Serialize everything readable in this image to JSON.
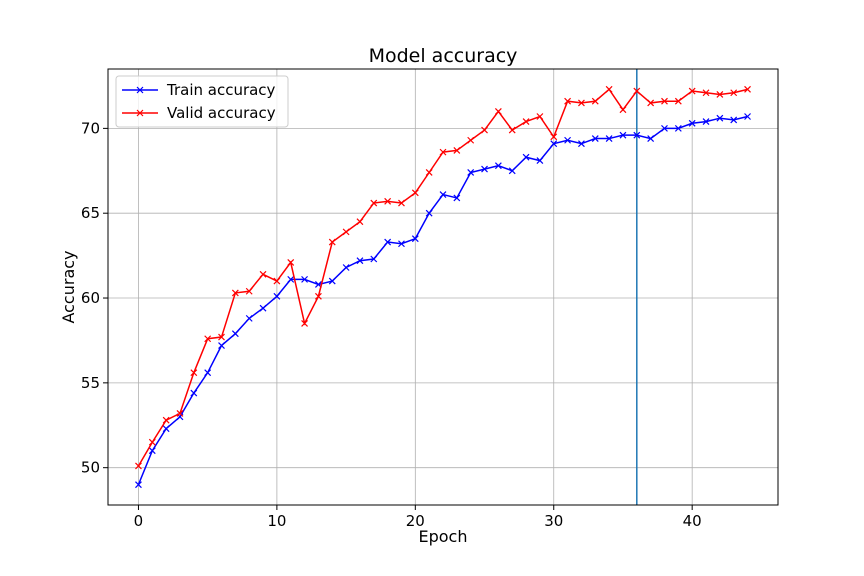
{
  "chart_data": {
    "type": "line",
    "title": "Model accuracy",
    "xlabel": "Epoch",
    "ylabel": "Accuracy",
    "xlim": [
      -2.2,
      46.2
    ],
    "ylim": [
      47.8,
      73.5
    ],
    "xticks": [
      0,
      10,
      20,
      30,
      40
    ],
    "yticks": [
      50,
      55,
      60,
      65,
      70
    ],
    "grid": true,
    "legend_position": "upper-left",
    "vertical_line": {
      "x": 36,
      "color": "#1f77b4"
    },
    "x": [
      0,
      1,
      2,
      3,
      4,
      5,
      6,
      7,
      8,
      9,
      10,
      11,
      12,
      13,
      14,
      15,
      16,
      17,
      18,
      19,
      20,
      21,
      22,
      23,
      24,
      25,
      26,
      27,
      28,
      29,
      30,
      31,
      32,
      33,
      34,
      35,
      36,
      37,
      38,
      39,
      40,
      41,
      42,
      43,
      44
    ],
    "series": [
      {
        "name": "Train accuracy",
        "color": "#0000ff",
        "marker": "x",
        "values": [
          49.0,
          51.0,
          52.3,
          53.0,
          54.4,
          55.6,
          57.2,
          57.9,
          58.8,
          59.4,
          60.1,
          61.1,
          61.1,
          60.8,
          61.0,
          61.8,
          62.2,
          62.3,
          63.3,
          63.2,
          63.5,
          65.0,
          66.1,
          65.9,
          67.4,
          67.6,
          67.8,
          67.5,
          68.3,
          68.1,
          69.1,
          69.3,
          69.1,
          69.4,
          69.4,
          69.6,
          69.6,
          69.4,
          70.0,
          70.0,
          70.3,
          70.4,
          70.6,
          70.5,
          70.7
        ]
      },
      {
        "name": "Valid accuracy",
        "color": "#ff0000",
        "marker": "x",
        "values": [
          50.1,
          51.5,
          52.8,
          53.2,
          55.6,
          57.6,
          57.7,
          60.3,
          60.4,
          61.4,
          61.0,
          62.1,
          58.5,
          60.1,
          63.3,
          63.9,
          64.5,
          65.6,
          65.7,
          65.6,
          66.2,
          67.4,
          68.6,
          68.7,
          69.3,
          69.9,
          71.0,
          69.9,
          70.4,
          70.7,
          69.5,
          71.6,
          71.5,
          71.6,
          72.3,
          71.1,
          72.2,
          71.5,
          71.6,
          71.6,
          72.2,
          72.1,
          72.0,
          72.1,
          72.3
        ]
      }
    ]
  }
}
